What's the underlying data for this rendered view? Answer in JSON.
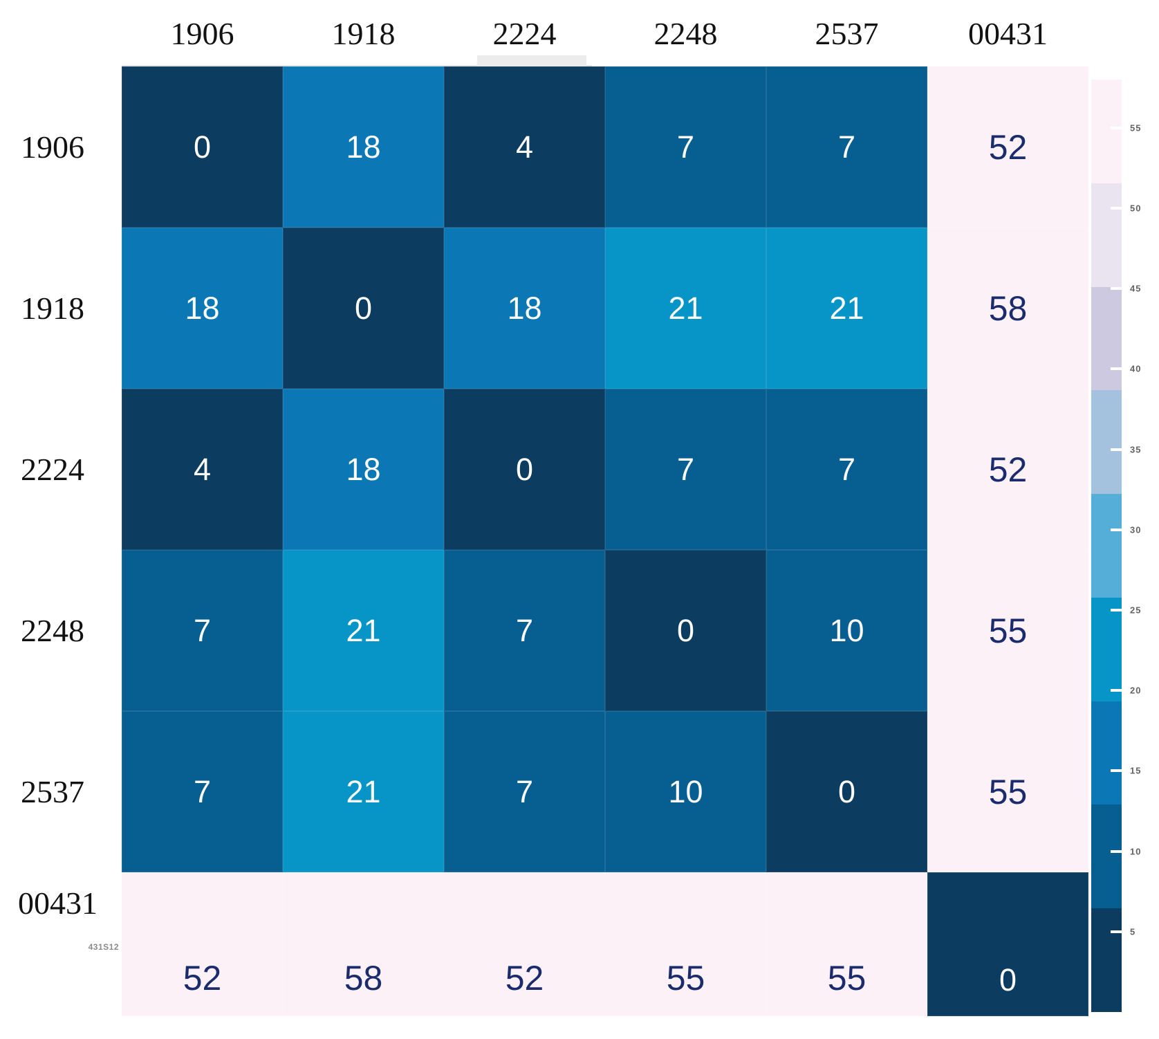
{
  "chart_data": {
    "type": "heatmap",
    "title": "",
    "x_categories": [
      "1906",
      "1918",
      "2224",
      "2248",
      "2537",
      "00431"
    ],
    "y_categories": [
      "1906",
      "1918",
      "2224",
      "2248",
      "2537",
      "00431"
    ],
    "values": [
      [
        0,
        18,
        4,
        7,
        7,
        52
      ],
      [
        18,
        0,
        18,
        21,
        21,
        58
      ],
      [
        4,
        18,
        0,
        7,
        7,
        52
      ],
      [
        7,
        21,
        7,
        0,
        10,
        55
      ],
      [
        7,
        21,
        7,
        10,
        0,
        55
      ],
      [
        52,
        58,
        52,
        55,
        55,
        0
      ]
    ],
    "annotation": "431S12",
    "value_range": [
      0,
      58
    ],
    "colorbar_ticks": [
      55,
      50,
      45,
      40,
      35,
      30,
      25,
      20,
      15,
      10,
      5
    ],
    "colormap": "discrete 9-bin blue-to-pale-pink (dark navy = low, pale pink = high)",
    "legend_position": "right"
  },
  "colorbar": {
    "vmin": 0,
    "vmax": 58,
    "n_bins": 9,
    "bin_colors_low_to_high": [
      "#0c3c60",
      "#075e90",
      "#0b77b5",
      "#0794c7",
      "#55aed8",
      "#a4c2de",
      "#cdc9e0",
      "#e9e4f0",
      "#fcf1f7"
    ],
    "tick_labels": [
      "55",
      "50",
      "45",
      "40",
      "35",
      "30",
      "25",
      "20",
      "15",
      "10",
      "5"
    ]
  },
  "colors": {
    "background": "#ffffff",
    "value_text_on_dark": "#ffffff",
    "value_text_on_light": "#1b2c6e",
    "axis_label_text": "#121212",
    "tick_label_text": "#636363",
    "sublabel_text": "#8a8a8a"
  }
}
